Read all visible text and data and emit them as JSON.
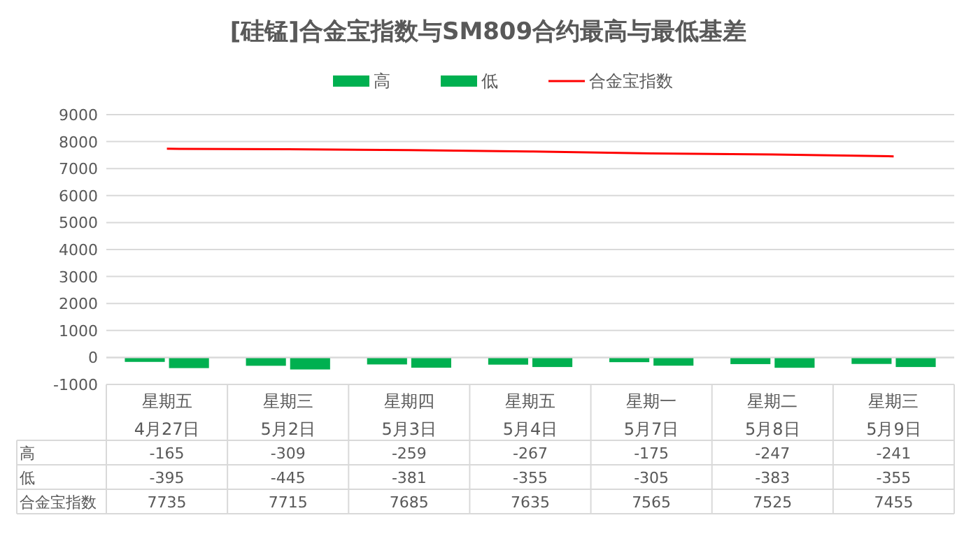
{
  "chart_data": {
    "type": "bar",
    "title": "[硅锰]合金宝指数与SM809合约最高与最低基差",
    "categories": [
      "星期五\n4月27日",
      "星期三\n5月2日",
      "星期四\n5月3日",
      "星期五\n5月4日",
      "星期一\n5月7日",
      "星期二\n5月8日",
      "星期三\n5月9日"
    ],
    "series": [
      {
        "name": "高",
        "color": "#00b050",
        "values": [
          -165,
          -309,
          -259,
          -267,
          -175,
          -247,
          -241
        ]
      },
      {
        "name": "低",
        "color": "#00b050",
        "values": [
          -395,
          -445,
          -381,
          -355,
          -305,
          -383,
          -355
        ]
      },
      {
        "name": "合金宝指数",
        "type": "line",
        "color": "#ff0000",
        "values": [
          7735,
          7715,
          7685,
          7635,
          7565,
          7525,
          7455
        ]
      }
    ],
    "ylim": [
      -1000,
      9000
    ],
    "yticks": [
      -1000,
      0,
      1000,
      2000,
      3000,
      4000,
      5000,
      6000,
      7000,
      8000,
      9000
    ],
    "grid": "y",
    "legend": "top",
    "data_labels": true
  }
}
